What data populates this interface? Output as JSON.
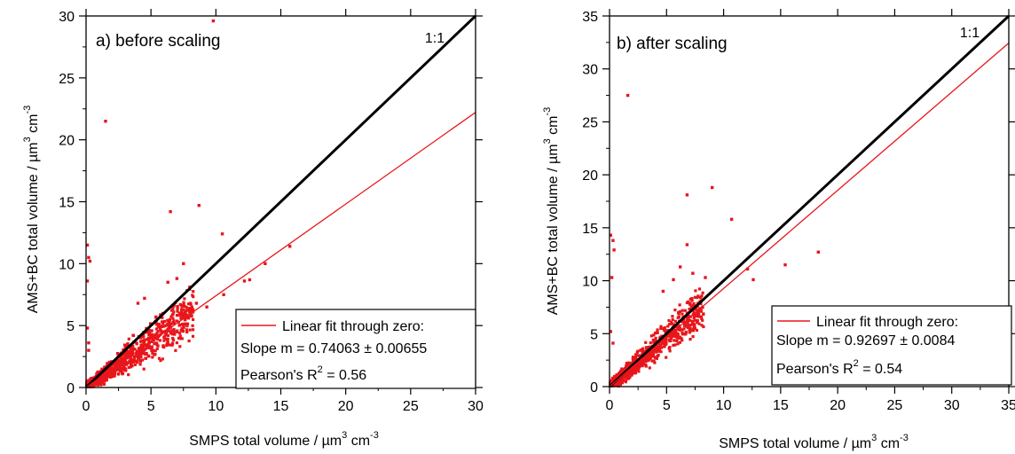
{
  "chart_data": [
    {
      "type": "scatter",
      "panel_label": "a) before scaling",
      "xlabel": "SMPS total volume / µm",
      "xlabel_sup1": "3",
      "xlabel_mid": " cm",
      "xlabel_sup2": "-3",
      "ylabel": "AMS+BC total volume / µm",
      "ylabel_sup1": "3",
      "ylabel_mid": " cm",
      "ylabel_sup2": "-3",
      "xlim": [
        0,
        30
      ],
      "ylim": [
        0,
        30
      ],
      "xticks": [
        0,
        5,
        10,
        15,
        20,
        25,
        30
      ],
      "yticks": [
        0,
        5,
        10,
        15,
        20,
        25,
        30
      ],
      "one_to_one_label": "1:1",
      "fit_slope": 0.74063,
      "legend": {
        "position": "bottom-right",
        "entry": "Linear fit through zero:",
        "slope_text": "Slope m = 0.74063 ± 0.00655",
        "pearson_prefix": "Pearson's R",
        "pearson_sup": "2",
        "pearson_suffix": " = 0.56"
      },
      "outliers": [
        {
          "x": 9.8,
          "y": 29.6
        },
        {
          "x": 1.5,
          "y": 21.5
        },
        {
          "x": 6.5,
          "y": 14.2
        },
        {
          "x": 8.7,
          "y": 14.7
        },
        {
          "x": 10.5,
          "y": 12.4
        },
        {
          "x": 0.1,
          "y": 11.5
        },
        {
          "x": 0.2,
          "y": 10.5
        },
        {
          "x": 0.3,
          "y": 10.2
        },
        {
          "x": 0.1,
          "y": 8.6
        },
        {
          "x": 7.5,
          "y": 10.0
        },
        {
          "x": 6.3,
          "y": 8.5
        },
        {
          "x": 7.0,
          "y": 8.8
        },
        {
          "x": 13.8,
          "y": 10.0
        },
        {
          "x": 15.7,
          "y": 11.4
        },
        {
          "x": 12.2,
          "y": 8.6
        },
        {
          "x": 12.6,
          "y": 8.7
        },
        {
          "x": 10.6,
          "y": 7.5
        },
        {
          "x": 8.5,
          "y": 6.8
        },
        {
          "x": 0.1,
          "y": 4.8
        },
        {
          "x": 0.2,
          "y": 3.6
        },
        {
          "x": 0.2,
          "y": 3.0
        },
        {
          "x": 4.0,
          "y": 6.8
        },
        {
          "x": 4.5,
          "y": 7.2
        },
        {
          "x": 9.3,
          "y": 6.5
        }
      ]
    },
    {
      "type": "scatter",
      "panel_label": "b) after scaling",
      "xlabel": "SMPS total volume / µm",
      "xlabel_sup1": "3",
      "xlabel_mid": " cm",
      "xlabel_sup2": "-3",
      "ylabel": "AMS+BC total volume / µm",
      "ylabel_sup1": "3",
      "ylabel_mid": " cm",
      "ylabel_sup2": "-3",
      "xlim": [
        0,
        35
      ],
      "ylim": [
        0,
        35
      ],
      "xticks": [
        0,
        5,
        10,
        15,
        20,
        25,
        30,
        35
      ],
      "yticks": [
        0,
        5,
        10,
        15,
        20,
        25,
        30,
        35
      ],
      "one_to_one_label": "1:1",
      "fit_slope": 0.92697,
      "legend": {
        "position": "bottom-right",
        "entry": "Linear fit through zero:",
        "slope_text": "Slope m = 0.92697 ± 0.0084",
        "pearson_prefix": "Pearson's R",
        "pearson_sup": "2",
        "pearson_suffix": " = 0.54"
      },
      "outliers": [
        {
          "x": 1.6,
          "y": 27.5
        },
        {
          "x": 6.8,
          "y": 18.1
        },
        {
          "x": 9.0,
          "y": 18.8
        },
        {
          "x": 10.7,
          "y": 15.8
        },
        {
          "x": 0.1,
          "y": 14.3
        },
        {
          "x": 0.3,
          "y": 13.8
        },
        {
          "x": 0.4,
          "y": 12.9
        },
        {
          "x": 0.2,
          "y": 10.3
        },
        {
          "x": 6.8,
          "y": 13.4
        },
        {
          "x": 6.2,
          "y": 11.3
        },
        {
          "x": 7.3,
          "y": 10.7
        },
        {
          "x": 12.1,
          "y": 11.1
        },
        {
          "x": 12.6,
          "y": 10.1
        },
        {
          "x": 15.4,
          "y": 11.5
        },
        {
          "x": 18.3,
          "y": 12.7
        },
        {
          "x": 8.4,
          "y": 10.3
        },
        {
          "x": 0.1,
          "y": 5.2
        },
        {
          "x": 0.3,
          "y": 4.1
        },
        {
          "x": 5.6,
          "y": 10.1
        },
        {
          "x": 4.7,
          "y": 9.0
        }
      ]
    }
  ]
}
